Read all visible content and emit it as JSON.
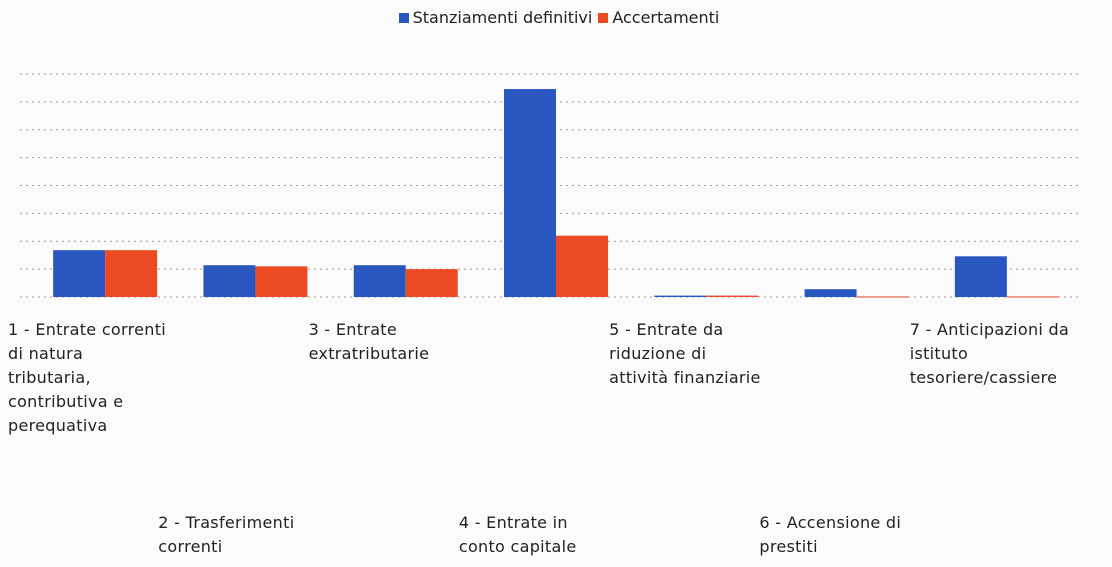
{
  "chart_data": {
    "type": "bar",
    "categories": [
      "1 - Entrate correnti di natura tributaria, contributiva e perequativa",
      "2 - Trasferimenti correnti",
      "3 - Entrate extratributarie",
      "4 - Entrate in conto capitale",
      "5 - Entrate da riduzione di attività finanziarie",
      "6 - Accensione di prestiti",
      "7 - Anticipazioni da istituto tesoriere/cassiere"
    ],
    "series": [
      {
        "name": "Stanziamenti definitivi",
        "color": "#2a56c0",
        "values": [
          1.68,
          1.14,
          1.14,
          7.46,
          0.05,
          0.28,
          1.46
        ]
      },
      {
        "name": "Accertamenti",
        "color": "#ec4a22",
        "values": [
          1.68,
          1.1,
          1.0,
          2.2,
          0.05,
          0.02,
          0.02
        ]
      }
    ],
    "ylim": [
      0,
      8
    ],
    "yticks": [
      0,
      1,
      2,
      3,
      4,
      5,
      6,
      7,
      8
    ],
    "grid": true,
    "legend": "top"
  }
}
